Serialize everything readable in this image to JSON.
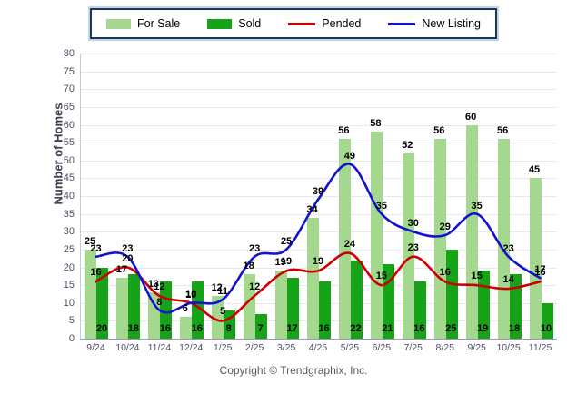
{
  "legend": {
    "items": [
      {
        "label": "For Sale",
        "type": "bar",
        "color": "#a5d88f"
      },
      {
        "label": "Sold",
        "type": "bar",
        "color": "#17a317"
      },
      {
        "label": "Pended",
        "type": "line",
        "color": "#cc0000"
      },
      {
        "label": "New Listing",
        "type": "line",
        "color": "#1212d2"
      }
    ]
  },
  "axes": {
    "y_title": "Number of Homes",
    "y_ticks": [
      0,
      5,
      10,
      15,
      20,
      25,
      30,
      35,
      40,
      45,
      50,
      55,
      60,
      65,
      70,
      75,
      80
    ]
  },
  "footer": {
    "copyright": "Copyright © Trendgraphix, Inc."
  },
  "chart_data": {
    "type": "bar",
    "subtype": "grouped bars with smoothed overlay lines",
    "categories": [
      "9/24",
      "10/24",
      "11/24",
      "12/24",
      "1/25",
      "2/25",
      "3/25",
      "4/25",
      "5/25",
      "6/25",
      "7/25",
      "8/25",
      "9/25",
      "10/25",
      "11/25"
    ],
    "series": [
      {
        "name": "For Sale",
        "type": "bar",
        "color": "#a5d88f",
        "values": [
          25,
          17,
          13,
          6,
          12,
          18,
          19,
          34,
          56,
          58,
          52,
          56,
          60,
          56,
          45
        ]
      },
      {
        "name": "Sold",
        "type": "bar",
        "color": "#17a317",
        "values": [
          20,
          18,
          16,
          16,
          8,
          7,
          17,
          16,
          22,
          21,
          16,
          25,
          19,
          18,
          10
        ]
      },
      {
        "name": "Pended",
        "type": "line",
        "color": "#cc0000",
        "values": [
          16,
          20,
          12,
          10,
          5,
          12,
          19,
          19,
          24,
          15,
          23,
          16,
          15,
          14,
          16
        ]
      },
      {
        "name": "New Listing",
        "type": "line",
        "color": "#1212d2",
        "values": [
          23,
          23,
          8,
          10,
          11,
          23,
          25,
          39,
          49,
          35,
          30,
          29,
          35,
          23,
          17
        ]
      }
    ],
    "title": "",
    "xlabel": "",
    "ylabel": "Number of Homes",
    "ylim": [
      0,
      80
    ],
    "grid": true,
    "legend_position": "top"
  }
}
